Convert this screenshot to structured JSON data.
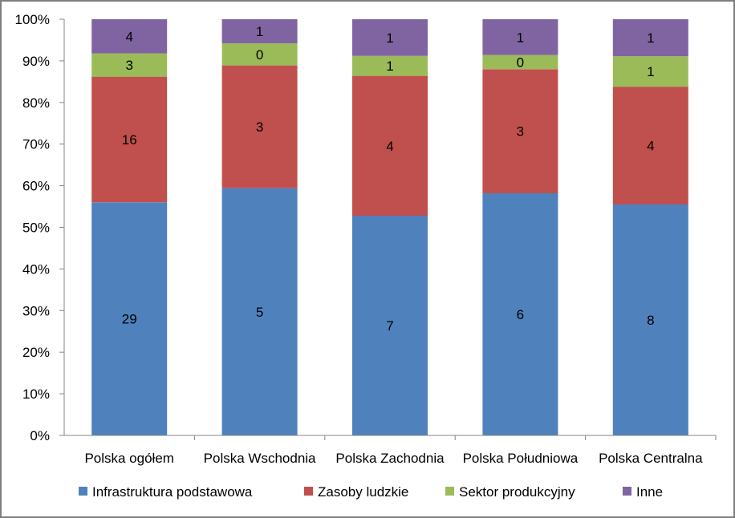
{
  "chart_data": {
    "type": "bar",
    "stacked": true,
    "normalized": true,
    "categories": [
      "Polska ogółem",
      "Polska Wschodnia",
      "Polska Zachodnia",
      "Polska Południowa",
      "Polska Centralna"
    ],
    "series": [
      {
        "name": "Infrastruktura podstawowa",
        "color": "#4F81BD",
        "labels": [
          "29",
          "5",
          "7",
          "6",
          "8"
        ],
        "values": [
          0.56,
          0.594,
          0.528,
          0.582,
          0.555
        ]
      },
      {
        "name": "Zasoby ludzkie",
        "color": "#C0504D",
        "labels": [
          "16",
          "3",
          "4",
          "3",
          "4"
        ],
        "values": [
          0.302,
          0.295,
          0.336,
          0.298,
          0.283
        ]
      },
      {
        "name": "Sektor produkcyjny",
        "color": "#9BBB59",
        "labels": [
          "3",
          "0",
          "1",
          "0",
          "1"
        ],
        "values": [
          0.056,
          0.053,
          0.048,
          0.034,
          0.073
        ]
      },
      {
        "name": "Inne",
        "color": "#8064A2",
        "labels": [
          "4",
          "1",
          "1",
          "1",
          "1"
        ],
        "values": [
          0.082,
          0.058,
          0.088,
          0.086,
          0.089
        ]
      }
    ],
    "y_ticks": [
      "0%",
      "10%",
      "20%",
      "30%",
      "40%",
      "50%",
      "60%",
      "70%",
      "80%",
      "90%",
      "100%"
    ],
    "ylim": [
      0,
      1
    ],
    "grid": false,
    "legend_position": "bottom"
  }
}
